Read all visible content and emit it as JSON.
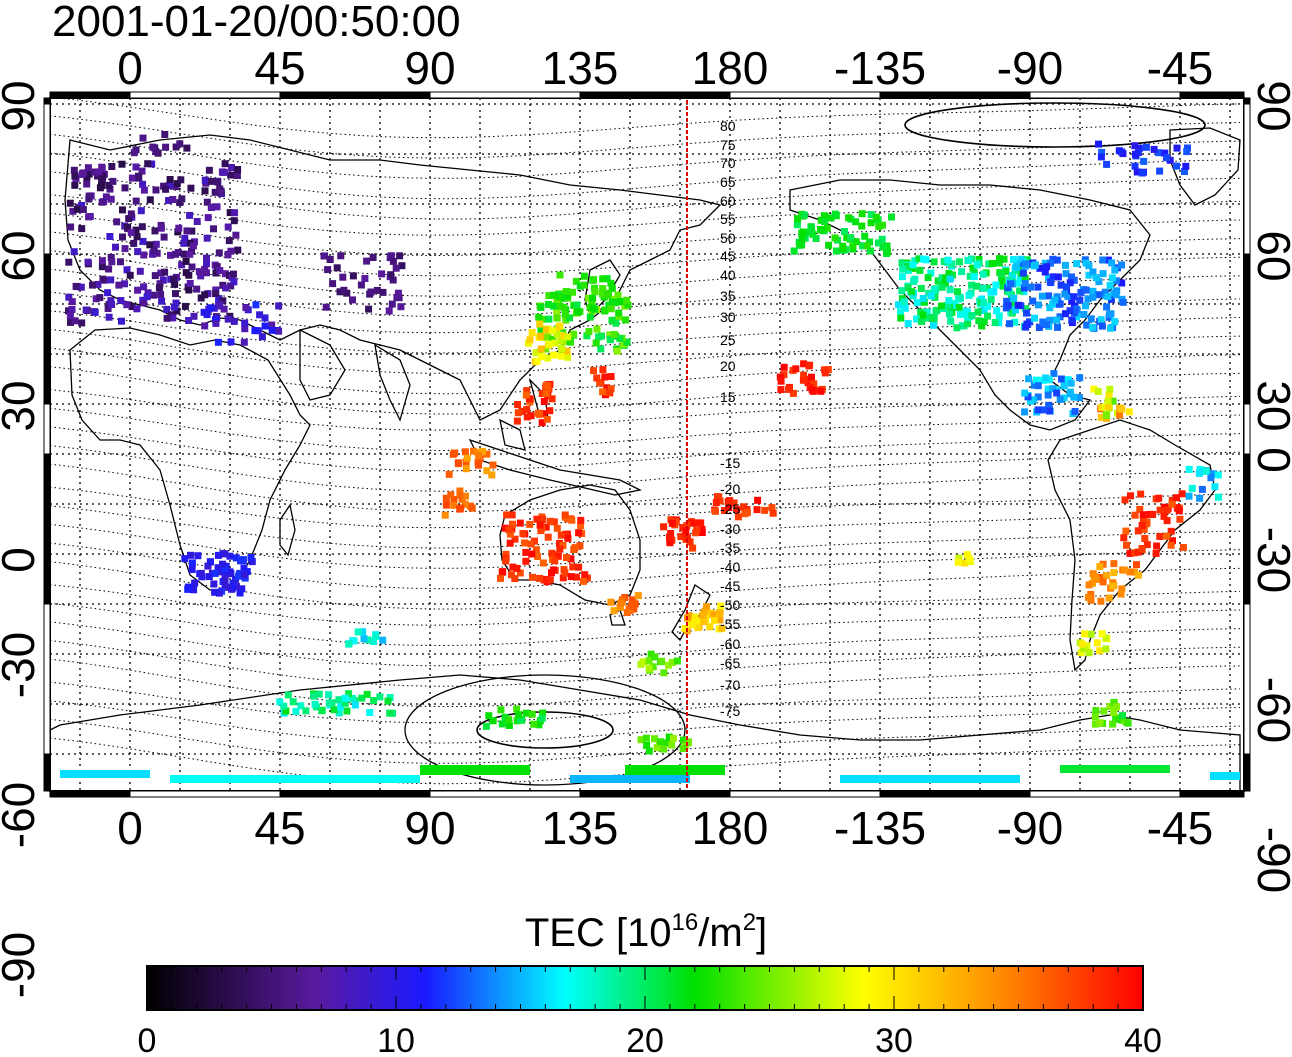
{
  "title": "2001-01-20/00:50:00",
  "map": {
    "top_lon_labels": [
      "0",
      "45",
      "90",
      "135",
      "180",
      "-135",
      "-90",
      "-45"
    ],
    "bottom_lon_labels": [
      "0",
      "45",
      "90",
      "135",
      "180",
      "-135",
      "-90",
      "-45"
    ],
    "left_lat_labels": [
      "90",
      "60",
      "30",
      "0",
      "-30",
      "-60",
      "-90"
    ],
    "right_lat_labels": [
      "90",
      "60",
      "30",
      "0",
      "-30",
      "-60",
      "-90"
    ],
    "mlat_labels_north": [
      "80",
      "75",
      "70",
      "65",
      "60",
      "55",
      "50",
      "45",
      "40",
      "35",
      "30",
      "25",
      "20",
      "15"
    ],
    "mlat_labels_south": [
      "-15",
      "-20",
      "-25",
      "-30",
      "-35",
      "-40",
      "-45",
      "-50",
      "-55",
      "-60",
      "-65",
      "-70",
      "-75"
    ],
    "terminator_color": "#e00000"
  },
  "colorbar": {
    "label_prefix": "TEC  [10",
    "label_sup1": "16",
    "label_mid": "/m",
    "label_sup2": "2",
    "label_suffix": "]",
    "ticks": [
      "0",
      "10",
      "20",
      "30",
      "40"
    ],
    "min": 0,
    "max": 40,
    "stops": [
      "#000000",
      "#5a1aa0",
      "#1a1aff",
      "#00ffff",
      "#00e000",
      "#ffff00",
      "#ff0000"
    ]
  }
}
